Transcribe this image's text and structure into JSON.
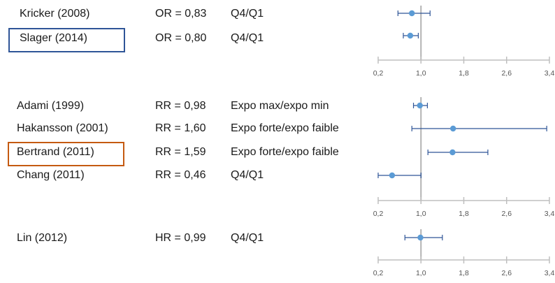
{
  "colors": {
    "point": "#5b9bd5",
    "ci": "#2f5597",
    "axis": "#bfbfbf",
    "ref_line": "#b3b3b3",
    "box_blue": "#2f5597",
    "box_orange": "#c55a11"
  },
  "chart_data": {
    "type": "forest",
    "ref_value": 1.0,
    "panels": [
      {
        "ticks": [
          "0,2",
          "1,0",
          "1,8",
          "2,6",
          "3,4"
        ],
        "xlim": [
          0.2,
          3.4
        ],
        "studies": [
          {
            "study": "Kricker (2008)",
            "measure": "OR = 0,83",
            "comparison": "Q4/Q1",
            "est": 0.83,
            "lo": 0.57,
            "hi": 1.17,
            "highlight": ""
          },
          {
            "study": "Slager (2014)",
            "measure": "OR = 0,80",
            "comparison": "Q4/Q1",
            "est": 0.8,
            "lo": 0.67,
            "hi": 0.95,
            "highlight": "blue"
          }
        ]
      },
      {
        "ticks": [
          "0,2",
          "1,0",
          "1,8",
          "2,6",
          "3,4"
        ],
        "xlim": [
          0.2,
          3.4
        ],
        "studies": [
          {
            "study": "Adami (1999)",
            "measure": "RR = 0,98",
            "comparison": "Expo max/expo min",
            "est": 0.98,
            "lo": 0.86,
            "hi": 1.12,
            "highlight": ""
          },
          {
            "study": "Hakansson (2001)",
            "measure": "RR = 1,60",
            "comparison": "Expo forte/expo faible",
            "est": 1.6,
            "lo": 0.83,
            "hi": 3.35,
            "highlight": ""
          },
          {
            "study": "Bertrand (2011)",
            "measure": "RR = 1,59",
            "comparison": "Expo forte/expo faible",
            "est": 1.59,
            "lo": 1.13,
            "hi": 2.25,
            "highlight": "orange"
          },
          {
            "study": "Chang (2011)",
            "measure": "RR = 0,46",
            "comparison": "Q4/Q1",
            "est": 0.46,
            "lo": 0.2,
            "hi": 1.0,
            "highlight": ""
          }
        ]
      },
      {
        "ticks": [
          "0,2",
          "1,0",
          "1,8",
          "2,6",
          "3,4"
        ],
        "xlim": [
          0.2,
          3.4
        ],
        "studies": [
          {
            "study": "Lin (2012)",
            "measure": "HR = 0,99",
            "comparison": "Q4/Q1",
            "est": 0.99,
            "lo": 0.7,
            "hi": 1.4,
            "highlight": ""
          }
        ]
      }
    ]
  }
}
